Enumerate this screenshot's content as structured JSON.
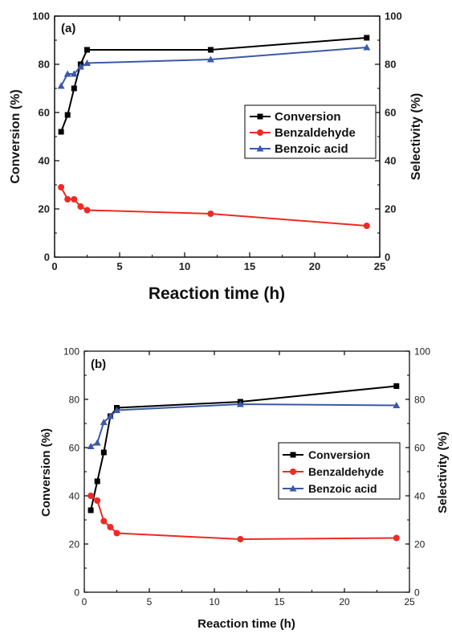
{
  "chart_data": [
    {
      "type": "line",
      "panel_label": "(a)",
      "xlabel": "Reaction time (h)",
      "ylabel": "Conversion (%)",
      "y2label": "Selectivity (%)",
      "xlim": [
        0,
        25
      ],
      "ylim": [
        0,
        100
      ],
      "y2lim": [
        0,
        100
      ],
      "xticks": [
        "0",
        "5",
        "10",
        "15",
        "20",
        "25"
      ],
      "yticks": [
        "0",
        "20",
        "40",
        "60",
        "80",
        "100"
      ],
      "y2ticks": [
        "0",
        "20",
        "40",
        "60",
        "80",
        "100"
      ],
      "legend_position": "center-right",
      "series": [
        {
          "name": "Conversion",
          "color": "#000000",
          "marker": "square",
          "x": [
            0.5,
            1,
            1.5,
            2,
            2.5,
            12,
            24
          ],
          "y": [
            52,
            59,
            70,
            80,
            86,
            86,
            91
          ]
        },
        {
          "name": "Benzaldehyde",
          "color": "#ee2a24",
          "marker": "circle",
          "x": [
            0.5,
            1,
            1.5,
            2,
            2.5,
            12,
            24
          ],
          "y": [
            29,
            24,
            24,
            21,
            19.5,
            18,
            13
          ]
        },
        {
          "name": "Benzoic acid",
          "color": "#3a59a8",
          "marker": "triangle",
          "x": [
            0.5,
            1,
            1.5,
            2,
            2.5,
            12,
            24
          ],
          "y": [
            71,
            76,
            76,
            79,
            80.5,
            82,
            87
          ]
        }
      ]
    },
    {
      "type": "line",
      "panel_label": "(b)",
      "xlabel": "Reaction time (h)",
      "ylabel": "Conversion (%)",
      "y2label": "Selectivity (%)",
      "xlim": [
        0,
        25
      ],
      "ylim": [
        0,
        100
      ],
      "y2lim": [
        0,
        100
      ],
      "xticks": [
        "0",
        "5",
        "10",
        "15",
        "20",
        "25"
      ],
      "yticks": [
        "0",
        "20",
        "40",
        "60",
        "80",
        "100"
      ],
      "y2ticks": [
        "0",
        "20",
        "40",
        "60",
        "80",
        "100"
      ],
      "legend_position": "center-right",
      "series": [
        {
          "name": "Conversion",
          "color": "#000000",
          "marker": "square",
          "x": [
            0.5,
            1,
            1.5,
            2,
            2.5,
            12,
            24
          ],
          "y": [
            34,
            46,
            58,
            73,
            76.5,
            79,
            85.5
          ]
        },
        {
          "name": "Benzaldehyde",
          "color": "#ee2a24",
          "marker": "circle",
          "x": [
            0.5,
            1,
            1.5,
            2,
            2.5,
            12,
            24
          ],
          "y": [
            40,
            38,
            29.5,
            27,
            24.5,
            22,
            22.5
          ]
        },
        {
          "name": "Benzoic acid",
          "color": "#3a59a8",
          "marker": "triangle",
          "x": [
            0.5,
            1,
            1.5,
            2,
            2.5,
            12,
            24
          ],
          "y": [
            60.5,
            62,
            70.5,
            73,
            75.5,
            78,
            77.5
          ]
        }
      ]
    }
  ]
}
